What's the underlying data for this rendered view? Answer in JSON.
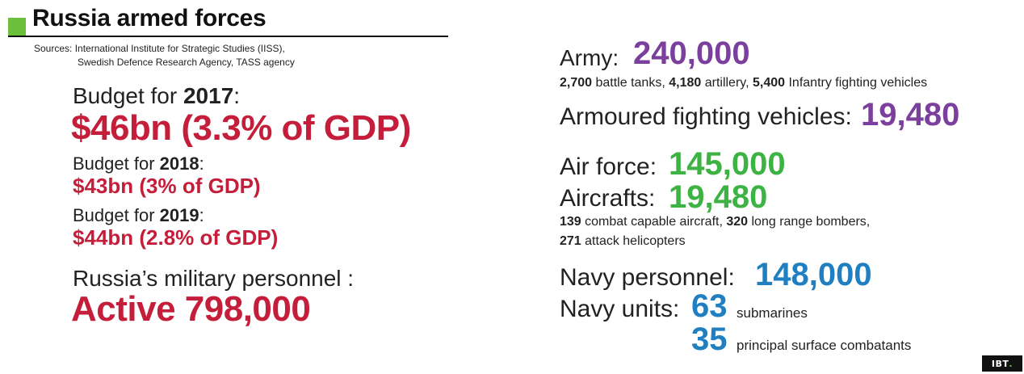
{
  "header": {
    "title": "Russia armed forces",
    "sources_line1": "Sources: International Institute for Strategic Studies (IISS),",
    "sources_line2": "Swedish Defence Research Agency, TASS  agency"
  },
  "budget": [
    {
      "label": "Budget for ",
      "year": "2017",
      "suffix": ":",
      "value": "$46bn (3.3% of GDP)"
    },
    {
      "label": "Budget for ",
      "year": "2018",
      "suffix": ":",
      "value": "$43bn (3% of GDP)"
    },
    {
      "label": "Budget for ",
      "year": "2019",
      "suffix": ":",
      "value": "$44bn (2.8% of GDP)"
    }
  ],
  "personnel": {
    "label": "Russia’s military personnel :",
    "value": "Active 798,000"
  },
  "army": {
    "label": "Army:",
    "value": "240,000",
    "details": [
      {
        "num": "2,700",
        "text": " battle tanks, "
      },
      {
        "num": "4,180",
        "text": " artillery,  "
      },
      {
        "num": "5,400",
        "text": " Infantry fighting vehicles"
      }
    ]
  },
  "afv": {
    "label": "Armoured fighting vehicles:",
    "value": "19,480"
  },
  "air_force": {
    "label": "Air force:",
    "value": "145,000",
    "aircraft_label": "Aircrafts:",
    "aircraft_value": "19,480",
    "details_line1": [
      {
        "num": "139",
        "text": " combat capable aircraft, "
      },
      {
        "num": "320",
        "text": " long range bombers,"
      }
    ],
    "details_line2": [
      {
        "num": "271",
        "text": " attack helicopters"
      }
    ]
  },
  "navy": {
    "label": "Navy personnel:",
    "value": "148,000",
    "units_label": "Navy units:",
    "submarines_num": "63",
    "submarines_text": "submarines",
    "surface_num": "35",
    "surface_text": "principal surface combatants"
  },
  "logo": {
    "text": "IBT",
    "dot": "."
  },
  "colors": {
    "red": "#c41e3a",
    "purple": "#7b3f9e",
    "green": "#3db343",
    "blue": "#1f7fc1",
    "accent_square": "#6cbf3a"
  }
}
